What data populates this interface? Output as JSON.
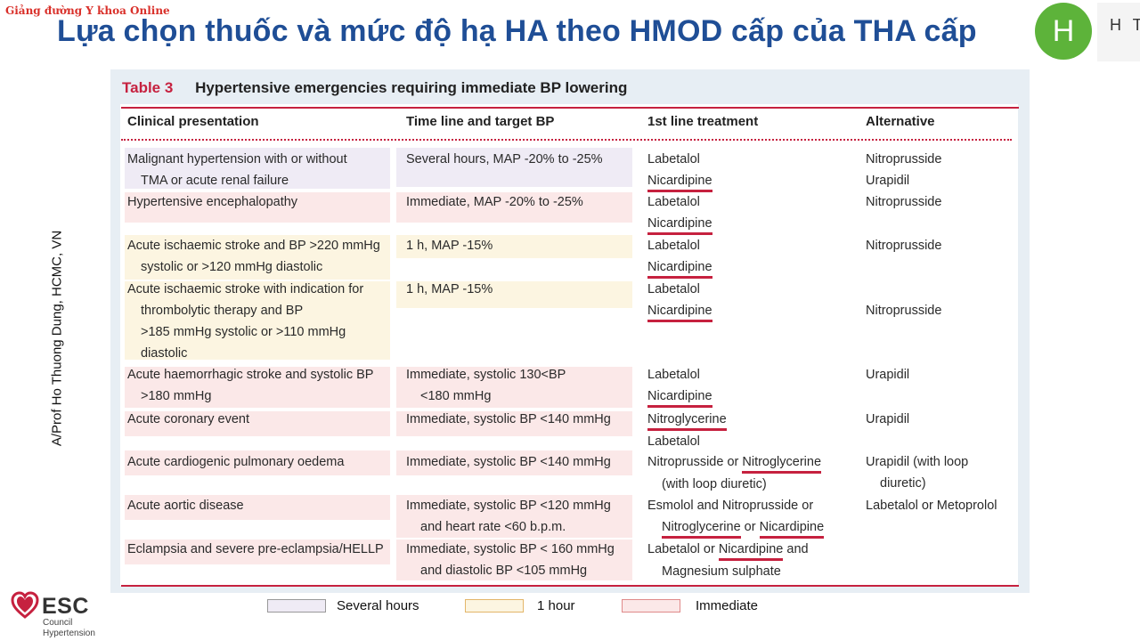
{
  "watermark": "Giảng đường Y khoa Online",
  "slide_title": "Lựa chọn thuốc và mức độ hạ HA theo HMOD cấp của THA cấp",
  "logo": {
    "letter": "H",
    "text": "H T"
  },
  "side_author": "A/Prof Ho Thuong Dung, HCMC, VN",
  "table": {
    "number": "Table 3",
    "title": "Hypertensive emergencies requiring immediate BP lowering",
    "headers": [
      "Clinical presentation",
      "Time line and target BP",
      "1st line treatment",
      "Alternative"
    ],
    "rows": [
      {
        "presentation": [
          "Malignant hypertension with or without",
          "TMA or acute renal failure"
        ],
        "timeline": [
          "Several hours, MAP -20% to -25%"
        ],
        "first_line": [
          "Labetalol",
          "Nicardipine"
        ],
        "alternative": [
          "Nitroprusside",
          "Urapidil"
        ]
      },
      {
        "presentation": [
          "Hypertensive encephalopathy"
        ],
        "timeline": [
          "Immediate, MAP -20% to -25%"
        ],
        "first_line": [
          "Labetalol",
          "Nicardipine"
        ],
        "alternative": [
          "Nitroprusside"
        ]
      },
      {
        "presentation": [
          "Acute ischaemic stroke and BP >220 mmHg",
          "systolic or >120 mmHg diastolic"
        ],
        "timeline": [
          "1 h, MAP -15%"
        ],
        "first_line": [
          "Labetalol",
          "Nicardipine"
        ],
        "alternative": [
          "Nitroprusside"
        ]
      },
      {
        "presentation": [
          "Acute ischaemic stroke with indication for",
          "thrombolytic therapy and BP",
          ">185 mmHg systolic or >110 mmHg",
          "diastolic"
        ],
        "timeline": [
          "1 h, MAP -15%"
        ],
        "first_line": [
          "Labetalol",
          "Nicardipine"
        ],
        "alternative": [
          "Nitroprusside"
        ]
      },
      {
        "presentation": [
          "Acute haemorrhagic stroke and systolic BP",
          ">180 mmHg"
        ],
        "timeline": [
          "Immediate, systolic 130<BP",
          "<180 mmHg"
        ],
        "first_line": [
          "Labetalol",
          "Nicardipine"
        ],
        "alternative": [
          "Urapidil"
        ]
      },
      {
        "presentation": [
          "Acute coronary event"
        ],
        "timeline": [
          "Immediate, systolic BP <140 mmHg"
        ],
        "first_line": [
          "Nitroglycerine",
          "Labetalol"
        ],
        "alternative": [
          "Urapidil"
        ]
      },
      {
        "presentation": [
          "Acute cardiogenic pulmonary oedema"
        ],
        "timeline": [
          "Immediate, systolic BP <140 mmHg"
        ],
        "first_line": [
          "Nitroprusside or ",
          "Nitroglycerine",
          "(with loop diuretic)"
        ],
        "alternative": [
          "Urapidil (with loop",
          "diuretic)"
        ]
      },
      {
        "presentation": [
          "Acute aortic disease"
        ],
        "timeline": [
          "Immediate, systolic BP <120 mmHg",
          "and heart rate <60 b.p.m."
        ],
        "first_line": [
          "Esmolol and Nitroprusside or",
          "Nitroglycerine",
          " or ",
          "Nicardipine"
        ],
        "alternative": [
          "Labetalol or Metoprolol"
        ]
      },
      {
        "presentation": [
          "Eclampsia and severe pre-eclampsia/HELLP"
        ],
        "timeline": [
          "Immediate, systolic BP < 160 mmHg",
          "and diastolic BP <105 mmHg"
        ],
        "first_line": [
          "Labetalol or ",
          "Nicardipine",
          " and",
          "Magnesium sulphate"
        ],
        "alternative": []
      }
    ]
  },
  "legend": [
    {
      "label": "Several hours",
      "color": "#efebf5"
    },
    {
      "label": "1 hour",
      "color": "#fcf5e1"
    },
    {
      "label": "Immediate",
      "color": "#fbe8e8"
    }
  ],
  "esc_logo": {
    "word": "ESC",
    "line1": "Council",
    "line2": "Hypertension"
  },
  "colors": {
    "title_blue": "#1f4e96",
    "accent_red": "#c6213f",
    "logo_green": "#5db33a"
  }
}
